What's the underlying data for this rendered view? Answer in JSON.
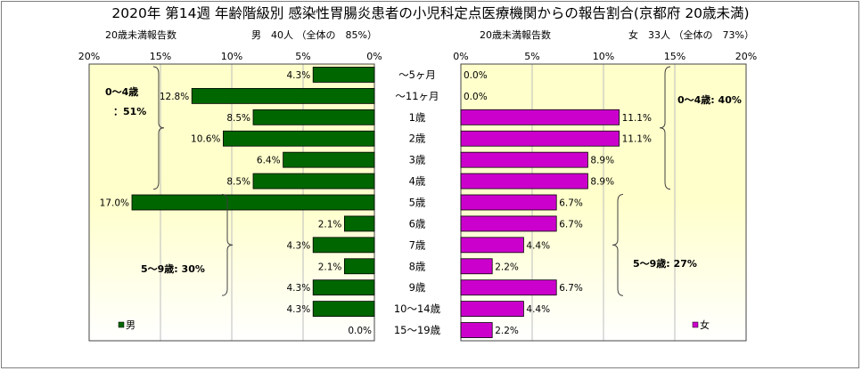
{
  "title": "2020年 第14週 年齢階級別 感染性胃腸炎患者の小児科定点医療機関からの報告割合(京都府 20歳未満)",
  "colors": {
    "male_bar": "#006600",
    "female_bar": "#cc00cc",
    "plot_bg_top": "#ffffcc",
    "plot_bg_bottom": "#ffffff",
    "bracket": "#404040"
  },
  "chart_data": [
    {
      "type": "bar",
      "orientation": "horizontal",
      "direction": "right-to-left",
      "subtitle_left": "20歳未満報告数",
      "subtitle_right": "男　40人 （全体の　85%）",
      "series": [
        {
          "name": "男",
          "values": [
            4.3,
            12.8,
            8.5,
            10.6,
            6.4,
            8.5,
            17.0,
            2.1,
            4.3,
            2.1,
            4.3,
            4.3,
            0.0
          ]
        }
      ],
      "value_labels": [
        "4.3%",
        "12.8%",
        "8.5%",
        "10.6%",
        "6.4%",
        "8.5%",
        "17.0%",
        "2.1%",
        "4.3%",
        "2.1%",
        "4.3%",
        "4.3%",
        "0.0%"
      ],
      "xlim": [
        0,
        20
      ],
      "x_ticks": [
        "20%",
        "15%",
        "10%",
        "5%",
        "0%"
      ],
      "legend": "bottom-left",
      "annotations": [
        "0～4歳",
        "：51%",
        "5～9歳: 30%"
      ],
      "grid": true
    },
    {
      "type": "bar",
      "orientation": "horizontal",
      "direction": "left-to-right",
      "subtitle_left": "20歳未満報告数",
      "subtitle_right": "女　33人 （全体の　73%）",
      "series": [
        {
          "name": "女",
          "values": [
            0.0,
            0.0,
            11.1,
            11.1,
            8.9,
            8.9,
            6.7,
            6.7,
            4.4,
            2.2,
            6.7,
            4.4,
            2.2
          ]
        }
      ],
      "value_labels": [
        "0.0%",
        "0.0%",
        "11.1%",
        "11.1%",
        "8.9%",
        "8.9%",
        "6.7%",
        "6.7%",
        "4.4%",
        "2.2%",
        "6.7%",
        "4.4%",
        "2.2%"
      ],
      "xlim": [
        0,
        20
      ],
      "x_ticks": [
        "0%",
        "5%",
        "10%",
        "15%",
        "20%"
      ],
      "legend": "bottom-right",
      "annotations": [
        "0～4歳: 40%",
        "5～9歳: 27%"
      ],
      "grid": true
    }
  ],
  "categories": [
    "～5ヶ月",
    "～11ヶ月",
    "1歳",
    "2歳",
    "3歳",
    "4歳",
    "5歳",
    "6歳",
    "7歳",
    "8歳",
    "9歳",
    "10～14歳",
    "15～19歳"
  ]
}
